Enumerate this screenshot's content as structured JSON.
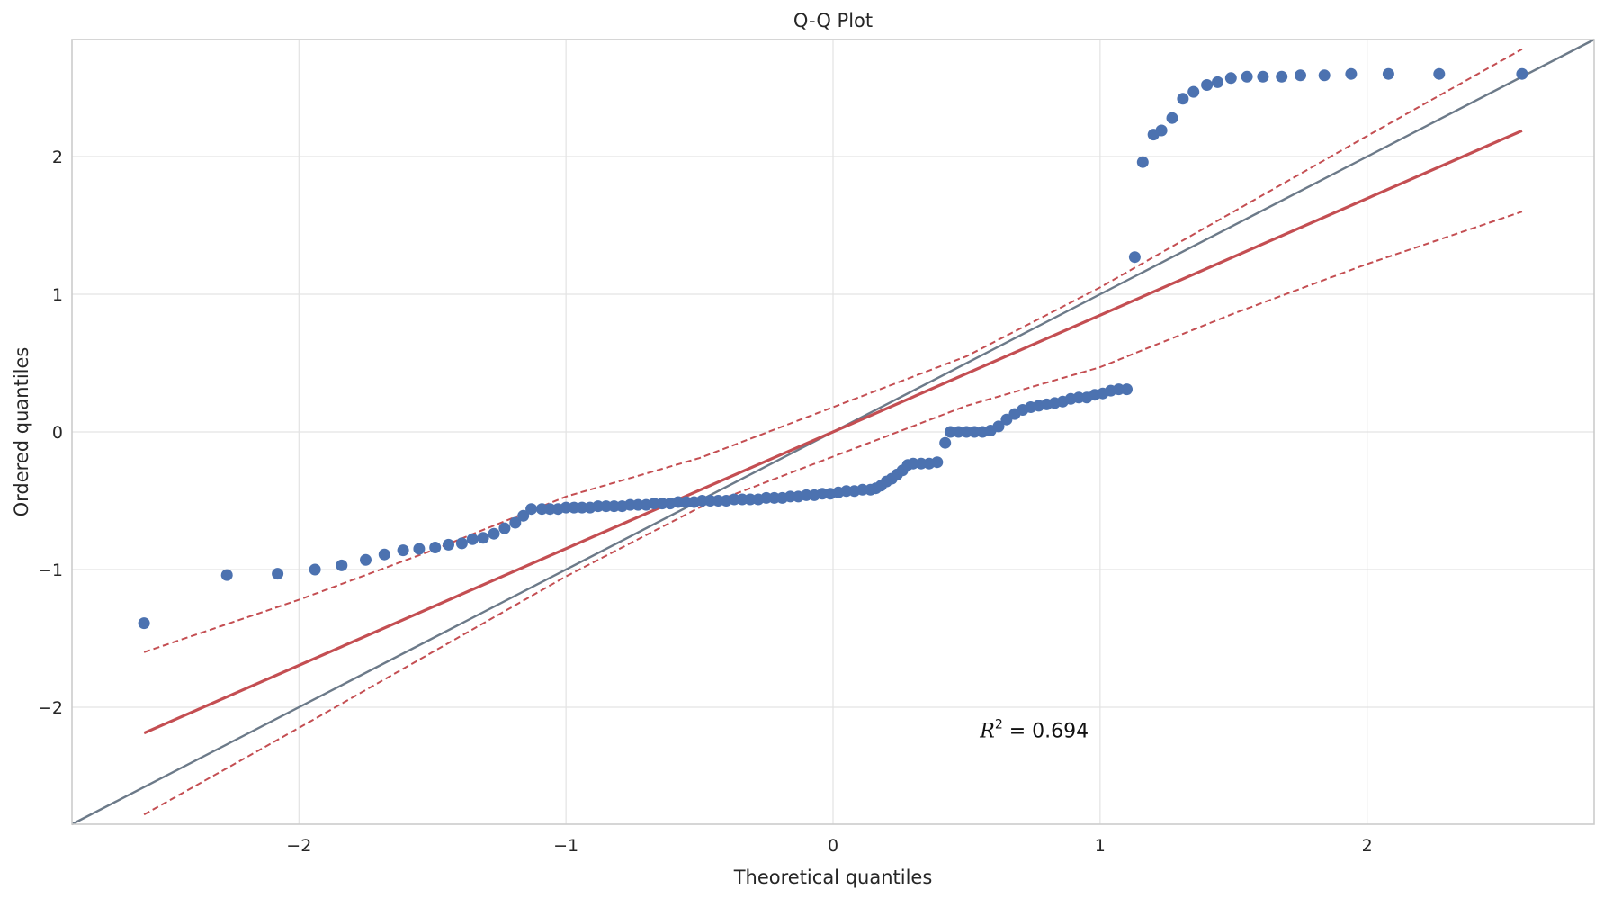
{
  "chart_data": {
    "type": "scatter",
    "title": "Q-Q Plot",
    "xlabel": "Theoretical quantiles",
    "ylabel": "Ordered quantiles",
    "xlim": [
      -2.85,
      2.85
    ],
    "ylim": [
      -2.85,
      2.85
    ],
    "xticks": [
      -2,
      -1,
      0,
      1,
      2
    ],
    "yticks": [
      -2,
      -1,
      0,
      1,
      2
    ],
    "xtick_labels": [
      "−2",
      "−1",
      "0",
      "1",
      "2"
    ],
    "ytick_labels": [
      "−2",
      "−1",
      "0",
      "1",
      "2"
    ],
    "grid": true,
    "annotation": {
      "variable": "R",
      "exponent": "2",
      "text": " = 0.694",
      "x": 0.55,
      "y": -2.22
    },
    "reference_line": {
      "slope": 1,
      "intercept": 0,
      "color": "#6c7a89"
    },
    "fit_line": {
      "slope": 0.848,
      "intercept": 0.0,
      "x_range": [
        -2.58,
        2.58
      ],
      "color": "#c44e52"
    },
    "confidence_band": {
      "color": "#c44e52",
      "upper": [
        [
          -2.58,
          -1.6
        ],
        [
          -2.0,
          -1.22
        ],
        [
          -1.5,
          -0.86
        ],
        [
          -1.0,
          -0.47
        ],
        [
          -0.5,
          -0.19
        ],
        [
          0.0,
          0.18
        ],
        [
          0.5,
          0.55
        ],
        [
          1.0,
          1.05
        ],
        [
          1.5,
          1.6
        ],
        [
          2.0,
          2.15
        ],
        [
          2.58,
          2.78
        ]
      ],
      "lower": [
        [
          -2.58,
          -2.78
        ],
        [
          -2.0,
          -2.15
        ],
        [
          -1.5,
          -1.6
        ],
        [
          -1.0,
          -1.05
        ],
        [
          -0.5,
          -0.55
        ],
        [
          0.0,
          -0.18
        ],
        [
          0.5,
          0.19
        ],
        [
          1.0,
          0.47
        ],
        [
          1.5,
          0.86
        ],
        [
          2.0,
          1.22
        ],
        [
          2.58,
          1.6
        ]
      ]
    },
    "series": [
      {
        "marker_color": "#4c72b0",
        "points": [
          [
            -2.58,
            -1.39
          ],
          [
            -2.27,
            -1.04
          ],
          [
            -2.08,
            -1.03
          ],
          [
            -1.94,
            -1.0
          ],
          [
            -1.84,
            -0.97
          ],
          [
            -1.75,
            -0.93
          ],
          [
            -1.68,
            -0.89
          ],
          [
            -1.61,
            -0.86
          ],
          [
            -1.55,
            -0.85
          ],
          [
            -1.49,
            -0.84
          ],
          [
            -1.44,
            -0.82
          ],
          [
            -1.39,
            -0.81
          ],
          [
            -1.35,
            -0.78
          ],
          [
            -1.31,
            -0.77
          ],
          [
            -1.27,
            -0.74
          ],
          [
            -1.23,
            -0.7
          ],
          [
            -1.19,
            -0.66
          ],
          [
            -1.16,
            -0.61
          ],
          [
            -1.13,
            -0.56
          ],
          [
            -1.09,
            -0.56
          ],
          [
            -1.06,
            -0.56
          ],
          [
            -1.03,
            -0.56
          ],
          [
            -1.0,
            -0.55
          ],
          [
            -0.97,
            -0.55
          ],
          [
            -0.94,
            -0.55
          ],
          [
            -0.91,
            -0.55
          ],
          [
            -0.88,
            -0.54
          ],
          [
            -0.85,
            -0.54
          ],
          [
            -0.82,
            -0.54
          ],
          [
            -0.79,
            -0.54
          ],
          [
            -0.76,
            -0.53
          ],
          [
            -0.73,
            -0.53
          ],
          [
            -0.7,
            -0.53
          ],
          [
            -0.67,
            -0.52
          ],
          [
            -0.64,
            -0.52
          ],
          [
            -0.61,
            -0.52
          ],
          [
            -0.58,
            -0.51
          ],
          [
            -0.55,
            -0.51
          ],
          [
            -0.52,
            -0.51
          ],
          [
            -0.49,
            -0.5
          ],
          [
            -0.46,
            -0.5
          ],
          [
            -0.43,
            -0.5
          ],
          [
            -0.4,
            -0.5
          ],
          [
            -0.37,
            -0.49
          ],
          [
            -0.34,
            -0.49
          ],
          [
            -0.31,
            -0.49
          ],
          [
            -0.28,
            -0.49
          ],
          [
            -0.25,
            -0.48
          ],
          [
            -0.22,
            -0.48
          ],
          [
            -0.19,
            -0.48
          ],
          [
            -0.16,
            -0.47
          ],
          [
            -0.13,
            -0.47
          ],
          [
            -0.1,
            -0.46
          ],
          [
            -0.07,
            -0.46
          ],
          [
            -0.04,
            -0.45
          ],
          [
            -0.01,
            -0.45
          ],
          [
            0.02,
            -0.44
          ],
          [
            0.05,
            -0.43
          ],
          [
            0.08,
            -0.43
          ],
          [
            0.11,
            -0.42
          ],
          [
            0.14,
            -0.42
          ],
          [
            0.16,
            -0.41
          ],
          [
            0.18,
            -0.39
          ],
          [
            0.2,
            -0.36
          ],
          [
            0.22,
            -0.34
          ],
          [
            0.24,
            -0.31
          ],
          [
            0.26,
            -0.28
          ],
          [
            0.28,
            -0.24
          ],
          [
            0.3,
            -0.23
          ],
          [
            0.33,
            -0.23
          ],
          [
            0.36,
            -0.23
          ],
          [
            0.39,
            -0.22
          ],
          [
            0.42,
            -0.08
          ],
          [
            0.44,
            0.0
          ],
          [
            0.47,
            0.0
          ],
          [
            0.5,
            0.0
          ],
          [
            0.53,
            0.0
          ],
          [
            0.56,
            0.0
          ],
          [
            0.59,
            0.01
          ],
          [
            0.62,
            0.04
          ],
          [
            0.65,
            0.09
          ],
          [
            0.68,
            0.13
          ],
          [
            0.71,
            0.16
          ],
          [
            0.74,
            0.18
          ],
          [
            0.77,
            0.19
          ],
          [
            0.8,
            0.2
          ],
          [
            0.83,
            0.21
          ],
          [
            0.86,
            0.22
          ],
          [
            0.89,
            0.24
          ],
          [
            0.92,
            0.25
          ],
          [
            0.95,
            0.25
          ],
          [
            0.98,
            0.27
          ],
          [
            1.01,
            0.28
          ],
          [
            1.04,
            0.3
          ],
          [
            1.07,
            0.31
          ],
          [
            1.1,
            0.31
          ],
          [
            1.13,
            1.27
          ],
          [
            1.16,
            1.96
          ],
          [
            1.2,
            2.16
          ],
          [
            1.23,
            2.19
          ],
          [
            1.27,
            2.28
          ],
          [
            1.31,
            2.42
          ],
          [
            1.35,
            2.47
          ],
          [
            1.4,
            2.52
          ],
          [
            1.44,
            2.54
          ],
          [
            1.49,
            2.57
          ],
          [
            1.55,
            2.58
          ],
          [
            1.61,
            2.58
          ],
          [
            1.68,
            2.58
          ],
          [
            1.75,
            2.59
          ],
          [
            1.84,
            2.59
          ],
          [
            1.94,
            2.6
          ],
          [
            2.08,
            2.6
          ],
          [
            2.27,
            2.6
          ],
          [
            2.58,
            2.6
          ]
        ]
      }
    ]
  }
}
